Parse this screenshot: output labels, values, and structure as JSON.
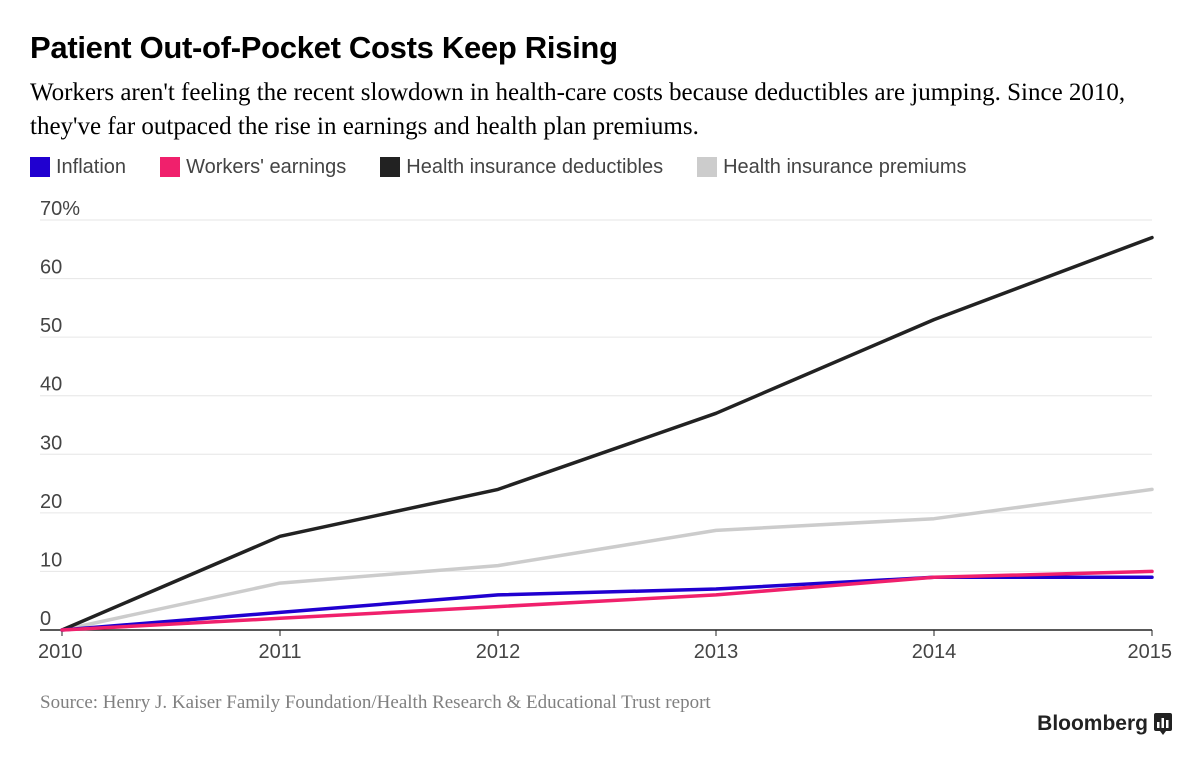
{
  "header": {
    "title": "Patient Out-of-Pocket Costs Keep Rising",
    "subtitle": "Workers aren't feeling the recent slowdown in health-care costs because deductibles are jumping. Since 2010, they've far outpaced the rise in earnings and health plan premiums."
  },
  "legend": {
    "items": [
      {
        "label": "Inflation",
        "color": "#2000d0"
      },
      {
        "label": "Workers' earnings",
        "color": "#f0206c"
      },
      {
        "label": "Health insurance deductibles",
        "color": "#222222"
      },
      {
        "label": "Health insurance premiums",
        "color": "#cccccc"
      }
    ]
  },
  "chart_data": {
    "type": "line",
    "x": [
      2010,
      2011,
      2012,
      2013,
      2014,
      2015
    ],
    "x_tick_labels": [
      "2010",
      "2011",
      "2012",
      "2013",
      "2014",
      "2015"
    ],
    "y_tick_labels": [
      "0",
      "10",
      "20",
      "30",
      "40",
      "50",
      "60",
      "70%"
    ],
    "ylim": [
      0,
      70
    ],
    "grid": true,
    "legend_position": "top-left",
    "series": [
      {
        "name": "Health insurance premiums",
        "color": "#cccccc",
        "values": [
          0,
          8,
          11,
          17,
          19,
          24
        ]
      },
      {
        "name": "Health insurance deductibles",
        "color": "#222222",
        "values": [
          0,
          16,
          24,
          37,
          53,
          67
        ]
      },
      {
        "name": "Inflation",
        "color": "#2000d0",
        "values": [
          0,
          3,
          6,
          7,
          9,
          9
        ]
      },
      {
        "name": "Workers' earnings",
        "color": "#f0206c",
        "values": [
          0,
          2,
          4,
          6,
          9,
          10
        ]
      }
    ]
  },
  "footer": {
    "source": "Source: Henry J. Kaiser Family Foundation/Health Research & Educational Trust report",
    "brand": "Bloomberg"
  }
}
